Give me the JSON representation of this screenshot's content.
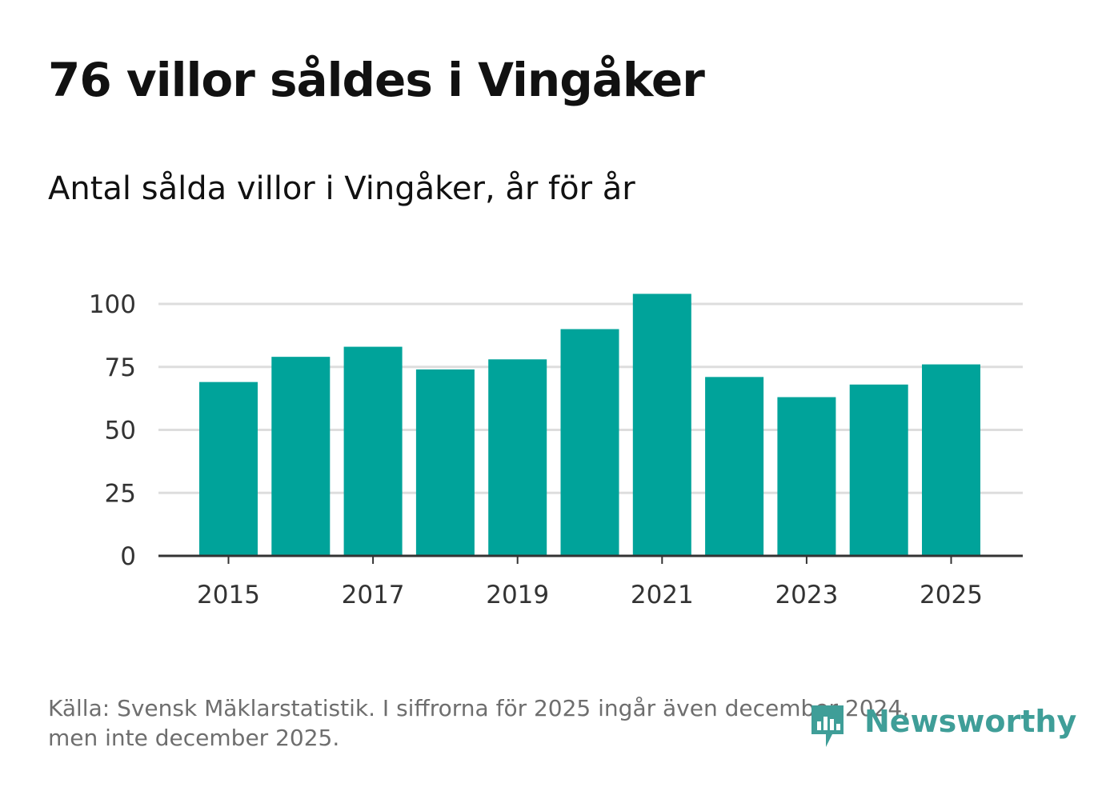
{
  "header": {
    "title": "76 villor såldes i Vingåker",
    "subtitle": "Antal sålda villor i Vingåker, år för år"
  },
  "footer": {
    "source_line1": "Källa: Svensk Mäklarstatistik. I siffrorna för 2025 ingår även december 2024,",
    "source_line2": "men inte december 2025.",
    "logo_text": "Newsworthy",
    "logo_icon": "bar-chart-speech-bubble-icon"
  },
  "colors": {
    "bar": "#00a39a",
    "grid": "#dddddd",
    "axis": "#333333",
    "logo": "#3f9e98"
  },
  "chart_data": {
    "type": "bar",
    "title": "Antal sålda villor i Vingåker, år för år",
    "xlabel": "",
    "ylabel": "",
    "categories": [
      "2015",
      "2016",
      "2017",
      "2018",
      "2019",
      "2020",
      "2021",
      "2022",
      "2023",
      "2024",
      "2025"
    ],
    "values": [
      69,
      79,
      83,
      74,
      78,
      90,
      104,
      71,
      63,
      68,
      76
    ],
    "ylim": [
      0,
      100
    ],
    "yticks": [
      0,
      25,
      50,
      75,
      100
    ],
    "xticks": [
      "2015",
      "2017",
      "2019",
      "2021",
      "2023",
      "2025"
    ],
    "grid": true,
    "legend": "none"
  }
}
